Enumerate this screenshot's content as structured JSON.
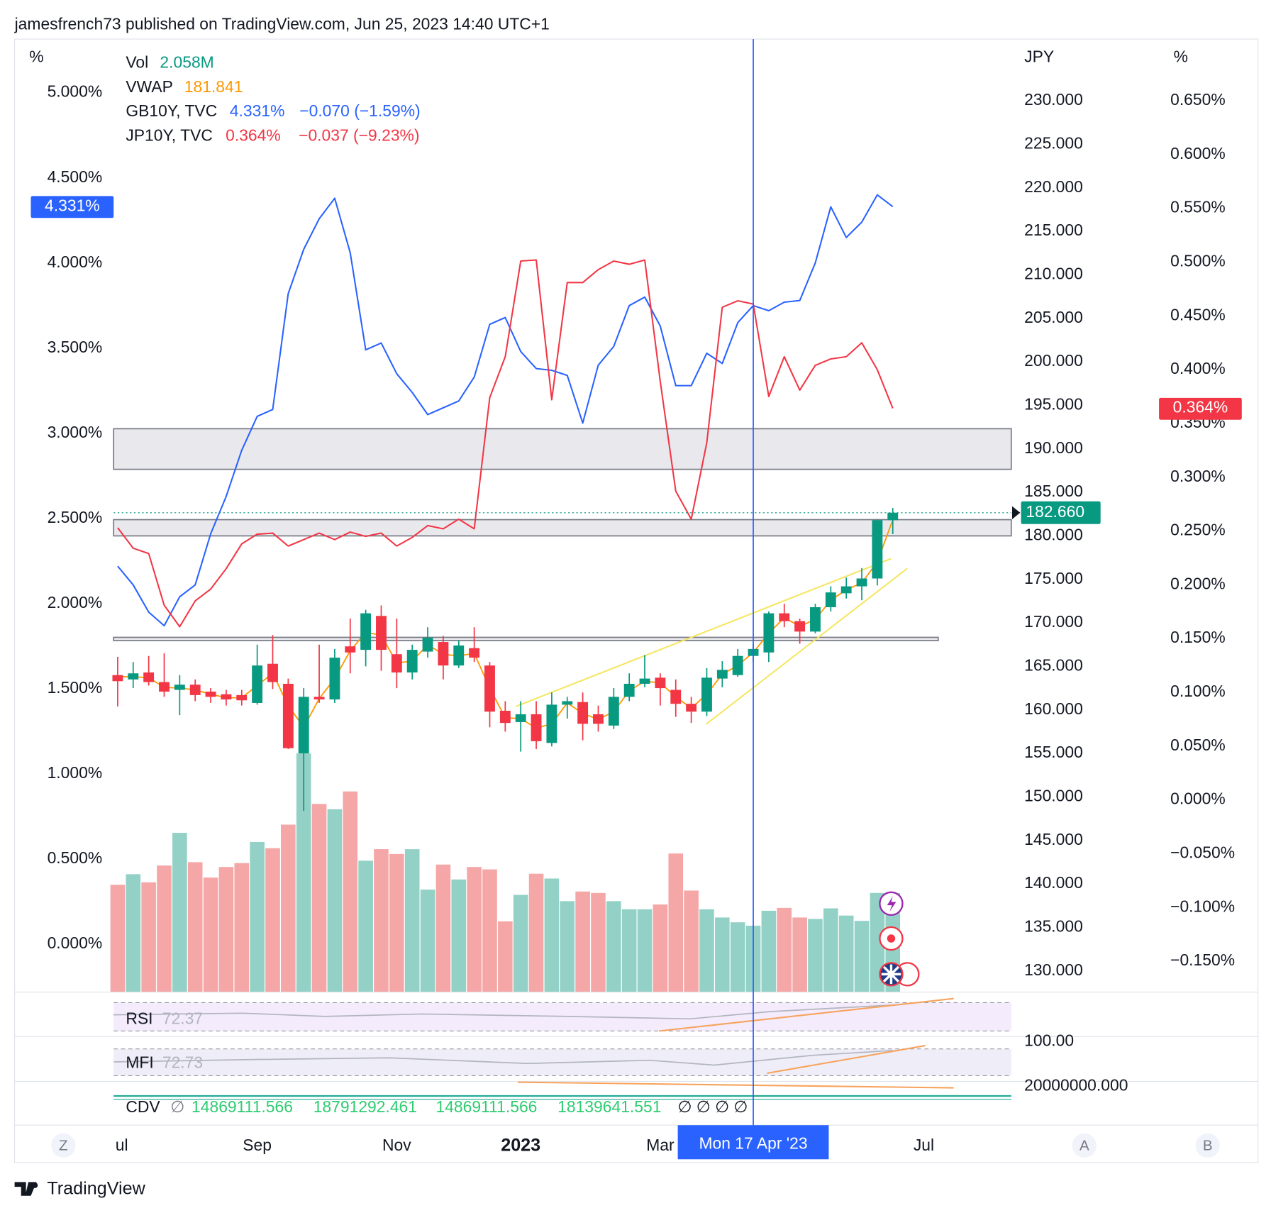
{
  "header": "jamesfrench73 published on TradingView.com, Jun 25, 2023 14:40 UTC+1",
  "footer": "TradingView",
  "buttons": [
    "Z",
    "A",
    "B"
  ],
  "chart_data": {
    "type": "candlestick",
    "axis_titles": {
      "y": "%",
      "y2": "JPY",
      "y3": "%"
    },
    "categories": [
      "ul",
      null,
      null,
      null,
      null,
      null,
      null,
      null,
      null,
      "Sep",
      null,
      null,
      null,
      null,
      null,
      null,
      null,
      null,
      "Nov",
      null,
      null,
      null,
      null,
      null,
      null,
      null,
      "2023",
      null,
      null,
      null,
      null,
      null,
      null,
      null,
      null,
      "Mar",
      null,
      null,
      null,
      null,
      null,
      "Mon 17 Apr '23",
      null,
      null,
      null,
      null,
      null,
      null,
      null,
      null,
      null,
      null,
      "Jul"
    ],
    "bold_category": "2023",
    "crosshair_category": "Mon 17 Apr '23",
    "crosshair_color": "#2962ff",
    "grid": false,
    "ylim": [
      -0.281,
      5.329
    ],
    "yticks": [
      {
        "value": 0,
        "label": "0.000%"
      },
      {
        "value": 0.5,
        "label": "0.500%"
      },
      {
        "value": 1,
        "label": "1.000%"
      },
      {
        "value": 1.5,
        "label": "1.500%"
      },
      {
        "value": 2,
        "label": "2.000%"
      },
      {
        "value": 2.5,
        "label": "2.500%"
      },
      {
        "value": 3,
        "label": "3.000%"
      },
      {
        "value": 3.5,
        "label": "3.500%"
      },
      {
        "value": 4,
        "label": "4.000%"
      },
      {
        "value": 4.5,
        "label": "4.500%"
      },
      {
        "value": 5,
        "label": "5.000%"
      }
    ],
    "y2lim": [
      127.57,
      237.37
    ],
    "y2ticks": [
      {
        "value": 130,
        "label": "130.000"
      },
      {
        "value": 135,
        "label": "135.000"
      },
      {
        "value": 140,
        "label": "140.000"
      },
      {
        "value": 145,
        "label": "145.000"
      },
      {
        "value": 150,
        "label": "150.000"
      },
      {
        "value": 155,
        "label": "155.000"
      },
      {
        "value": 160,
        "label": "160.000"
      },
      {
        "value": 165,
        "label": "165.000"
      },
      {
        "value": 170,
        "label": "170.000"
      },
      {
        "value": 175,
        "label": "175.000"
      },
      {
        "value": 180,
        "label": "180.000"
      },
      {
        "value": 185,
        "label": "185.000"
      },
      {
        "value": 190,
        "label": "190.000"
      },
      {
        "value": 195,
        "label": "195.000"
      },
      {
        "value": 200,
        "label": "200.000"
      },
      {
        "value": 205,
        "label": "205.000"
      },
      {
        "value": 210,
        "label": "210.000"
      },
      {
        "value": 215,
        "label": "215.000"
      },
      {
        "value": 220,
        "label": "220.000"
      },
      {
        "value": 225,
        "label": "225.000"
      },
      {
        "value": 230,
        "label": "230.000"
      }
    ],
    "y3lim": [
      -0.1787,
      0.7096
    ],
    "y3ticks": [
      {
        "value": -0.15,
        "label": "−0.150%"
      },
      {
        "value": -0.1,
        "label": "−0.100%"
      },
      {
        "value": -0.05,
        "label": "−0.050%"
      },
      {
        "value": 0,
        "label": "0.000%"
      },
      {
        "value": 0.05,
        "label": "0.050%"
      },
      {
        "value": 0.1,
        "label": "0.100%"
      },
      {
        "value": 0.15,
        "label": "0.150%"
      },
      {
        "value": 0.2,
        "label": "0.200%"
      },
      {
        "value": 0.25,
        "label": "0.250%"
      },
      {
        "value": 0.3,
        "label": "0.300%"
      },
      {
        "value": 0.35,
        "label": "0.350%"
      },
      {
        "value": 0.4,
        "label": "0.400%"
      },
      {
        "value": 0.45,
        "label": "0.450%"
      },
      {
        "value": 0.5,
        "label": "0.500%"
      },
      {
        "value": 0.55,
        "label": "0.550%"
      },
      {
        "value": 0.6,
        "label": "0.600%"
      },
      {
        "value": 0.65,
        "label": "0.650%"
      }
    ],
    "ohlc": {
      "axis": "y2",
      "up_color": "#089981",
      "down_color": "#f23645",
      "last_label": "182.660",
      "open": [
        164.0,
        163.5,
        164.3,
        163.2,
        162.3,
        162.9,
        162.1,
        161.8,
        161.7,
        160.8,
        165.3,
        163.0,
        155.0,
        161.5,
        161.2,
        167.3,
        166.9,
        170.8,
        166.4,
        164.3,
        166.7,
        167.8,
        165.1,
        167.1,
        165.1,
        159.9,
        158.6,
        159.5,
        156.2,
        160.6,
        160.9,
        159.5,
        158.2,
        161.5,
        163.0,
        163.7,
        162.3,
        160.7,
        159.8,
        163.6,
        164.0,
        166.2,
        166.6,
        171.1,
        170.2,
        169.0,
        171.8,
        173.4,
        174.2,
        175.1,
        181.8,
        null,
        null
      ],
      "high": [
        166.1,
        165.5,
        166.2,
        166.5,
        164.0,
        163.5,
        162.5,
        162.3,
        162.3,
        167.5,
        168.6,
        163.6,
        162.5,
        167.5,
        167.0,
        170.5,
        171.5,
        172.0,
        170.5,
        167.5,
        169.5,
        168.5,
        168.0,
        169.5,
        165.5,
        161.0,
        161.0,
        161.0,
        162.0,
        161.5,
        162.0,
        160.5,
        162.5,
        164.2,
        166.3,
        164.2,
        163.5,
        161.5,
        164.8,
        165.6,
        167.0,
        167.6,
        171.3,
        172.2,
        170.5,
        172.2,
        174.2,
        175.2,
        176.3,
        181.9,
        183.2,
        null,
        null
      ],
      "low": [
        160.4,
        162.5,
        162.8,
        161.5,
        159.4,
        161.0,
        160.8,
        160.5,
        160.5,
        160.6,
        162.4,
        155.5,
        148.4,
        160.8,
        160.8,
        164.2,
        165.0,
        164.5,
        162.5,
        163.5,
        166.0,
        163.5,
        164.8,
        165.5,
        158.0,
        157.5,
        155.2,
        155.5,
        155.8,
        159.0,
        156.5,
        157.5,
        157.8,
        161.0,
        162.6,
        160.5,
        159.2,
        158.5,
        159.3,
        162.6,
        163.8,
        165.5,
        165.5,
        169.5,
        167.6,
        168.8,
        171.3,
        172.8,
        172.6,
        174.3,
        180.2,
        null,
        null
      ],
      "close": [
        163.3,
        164.2,
        163.2,
        162.1,
        162.9,
        161.7,
        161.5,
        161.2,
        161.1,
        165.1,
        163.2,
        155.6,
        161.5,
        161.2,
        166.0,
        166.6,
        171.1,
        166.9,
        164.3,
        166.9,
        168.3,
        165.1,
        167.4,
        166.0,
        159.8,
        158.5,
        159.5,
        156.4,
        160.6,
        161.0,
        158.4,
        158.4,
        161.5,
        163.0,
        163.6,
        162.5,
        160.7,
        159.8,
        163.7,
        164.6,
        166.2,
        167.0,
        171.1,
        170.2,
        169.0,
        171.8,
        173.5,
        174.2,
        175.1,
        181.8,
        182.66,
        null,
        null
      ]
    },
    "volume": {
      "name": "Vol",
      "last_label": "2.058M",
      "label_color": "#089981",
      "up_color": "#93d1c6",
      "down_color": "#f5a6a6",
      "values": [
        2.23,
        2.45,
        2.28,
        2.63,
        3.31,
        2.7,
        2.38,
        2.6,
        2.68,
        3.12,
        2.99,
        3.48,
        4.96,
        3.91,
        3.8,
        4.17,
        2.73,
        2.97,
        2.87,
        2.97,
        2.13,
        2.65,
        2.34,
        2.6,
        2.55,
        1.47,
        2.02,
        2.46,
        2.36,
        1.89,
        2.09,
        2.06,
        1.89,
        1.72,
        1.72,
        1.82,
        2.88,
        2.11,
        1.72,
        1.55,
        1.45,
        1.38,
        1.69,
        1.75,
        1.55,
        1.52,
        1.74,
        1.59,
        1.48,
        2.06,
        2.058,
        null,
        null
      ]
    },
    "series": [
      {
        "name": "VWAP",
        "color": "#ff9800",
        "axis": "y2",
        "values": [
          163.8,
          163.8,
          163.7,
          162.6,
          162.5,
          162.3,
          161.8,
          161.4,
          161.4,
          162.8,
          164.2,
          160.5,
          158.0,
          161.3,
          163.6,
          166.8,
          168.9,
          168.6,
          165.4,
          165.6,
          167.5,
          166.4,
          166.2,
          166.5,
          162.5,
          159.1,
          159.0,
          157.9,
          158.4,
          160.8,
          159.6,
          158.9,
          159.8,
          162.2,
          163.3,
          163.1,
          161.5,
          160.2,
          161.8,
          164.1,
          165.1,
          166.6,
          168.8,
          170.6,
          169.6,
          170.4,
          172.6,
          173.8,
          174.6,
          177.0,
          181.841,
          null,
          null
        ]
      },
      {
        "name": "GB10Y, TVC",
        "color": "#2962ff",
        "axis": "y",
        "last_label": "4.331%",
        "change": "−0.070 (−1.59%)",
        "values": [
          2.22,
          2.11,
          1.95,
          1.87,
          2.04,
          2.11,
          2.41,
          2.63,
          2.9,
          3.1,
          3.14,
          3.82,
          4.08,
          4.26,
          4.38,
          4.06,
          3.49,
          3.53,
          3.35,
          3.24,
          3.11,
          3.15,
          3.19,
          3.33,
          3.64,
          3.68,
          3.48,
          3.38,
          3.37,
          3.34,
          3.06,
          3.4,
          3.51,
          3.75,
          3.8,
          3.63,
          3.28,
          3.28,
          3.47,
          3.41,
          3.65,
          3.75,
          3.72,
          3.77,
          3.78,
          4.0,
          4.33,
          4.15,
          4.24,
          4.4,
          4.331,
          null,
          null
        ]
      },
      {
        "name": "JP10Y, TVC",
        "color": "#f23645",
        "axis": "y3",
        "last_label": "0.364%",
        "change": "−0.037 (−9.23%)",
        "values": [
          0.253,
          0.234,
          0.229,
          0.181,
          0.161,
          0.185,
          0.196,
          0.215,
          0.238,
          0.247,
          0.248,
          0.236,
          0.242,
          0.248,
          0.242,
          0.249,
          0.245,
          0.248,
          0.236,
          0.244,
          0.255,
          0.252,
          0.261,
          0.252,
          0.374,
          0.412,
          0.501,
          0.502,
          0.372,
          0.481,
          0.481,
          0.493,
          0.501,
          0.498,
          0.502,
          0.389,
          0.287,
          0.261,
          0.332,
          0.458,
          0.464,
          0.461,
          0.375,
          0.412,
          0.381,
          0.404,
          0.41,
          0.412,
          0.425,
          0.4,
          0.364,
          null,
          null
        ]
      }
    ],
    "panels": {
      "rsi": {
        "name": "RSI",
        "value": 72.37
      },
      "mfi": {
        "name": "MFI",
        "value": 72.73,
        "level": {
          "value": 100,
          "label": "100.00"
        }
      },
      "cdv": {
        "name": "CDV",
        "symbol": "∅",
        "values": [
          14869111.566,
          18791292.461,
          14869111.566,
          18139641.551
        ],
        "placeholders": "∅ ∅ ∅ ∅",
        "level": {
          "value": 20000000,
          "label": "20000000.000"
        }
      }
    }
  }
}
